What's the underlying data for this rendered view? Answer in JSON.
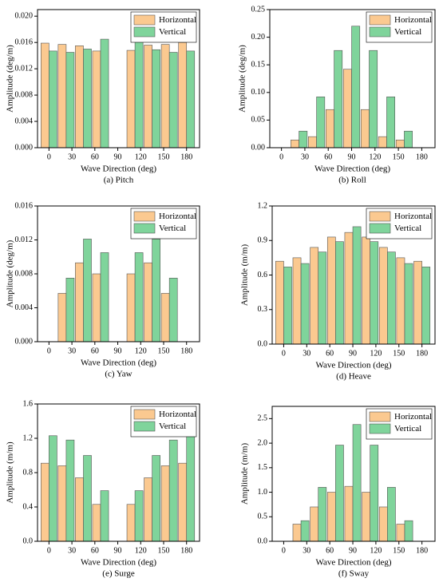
{
  "chart_data": [
    {
      "type": "bar",
      "caption": "(a) Pitch",
      "xlabel": "Wave Direction (deg)",
      "ylabel": "Amplitude (deg/m)",
      "x": [
        0,
        22.5,
        45,
        67.5,
        90,
        112.5,
        135,
        157.5,
        180
      ],
      "series": [
        {
          "name": "Horizontal",
          "color": "#fbc990",
          "values": [
            0.0159,
            0.0157,
            0.0155,
            0.0147,
            0,
            0.0148,
            0.0156,
            0.0157,
            0.016
          ]
        },
        {
          "name": "Vertical",
          "color": "#7fd49b",
          "values": [
            0.0147,
            0.0145,
            0.015,
            0.0165,
            0,
            0.0165,
            0.0149,
            0.0145,
            0.0147
          ]
        }
      ],
      "xlim": [
        -15,
        197
      ],
      "xticks": [
        0,
        30,
        60,
        90,
        120,
        150,
        180
      ],
      "ylim": [
        0,
        0.021
      ],
      "yticks": [
        {
          "value": 0,
          "label": "0.000"
        },
        {
          "value": 0.004,
          "label": "0.004"
        },
        {
          "value": 0.008,
          "label": "0.008"
        },
        {
          "value": 0.012,
          "label": "0.012"
        },
        {
          "value": 0.016,
          "label": "0.016"
        },
        {
          "value": 0.02,
          "label": "0.020"
        }
      ],
      "legend": "upper right"
    },
    {
      "type": "bar",
      "caption": "(b) Roll",
      "xlabel": "Wave Direction (deg)",
      "ylabel": "Amplitude (deg/m)",
      "x": [
        0,
        22.5,
        45,
        67.5,
        90,
        112.5,
        135,
        157.5,
        180
      ],
      "series": [
        {
          "name": "Horizontal",
          "color": "#fbc990",
          "values": [
            0,
            0.014,
            0.02,
            0.069,
            0.142,
            0.069,
            0.02,
            0.014,
            0
          ]
        },
        {
          "name": "Vertical",
          "color": "#7fd49b",
          "values": [
            0,
            0.03,
            0.092,
            0.176,
            0.22,
            0.176,
            0.092,
            0.03,
            0
          ]
        }
      ],
      "xlim": [
        -15,
        197
      ],
      "xticks": [
        0,
        30,
        60,
        90,
        120,
        150,
        180
      ],
      "ylim": [
        0,
        0.25
      ],
      "yticks": [
        {
          "value": 0,
          "label": "0.00"
        },
        {
          "value": 0.05,
          "label": "0.05"
        },
        {
          "value": 0.1,
          "label": "0.10"
        },
        {
          "value": 0.15,
          "label": "0.15"
        },
        {
          "value": 0.2,
          "label": "0.20"
        },
        {
          "value": 0.25,
          "label": "0.25"
        }
      ],
      "legend": "upper right"
    },
    {
      "type": "bar",
      "caption": "(c) Yaw",
      "xlabel": "Wave Direction (deg)",
      "ylabel": "Amplitude (deg/m)",
      "x": [
        0,
        22.5,
        45,
        67.5,
        90,
        112.5,
        135,
        157.5,
        180
      ],
      "series": [
        {
          "name": "Horizontal",
          "color": "#fbc990",
          "values": [
            0,
            0.0057,
            0.0093,
            0.008,
            0,
            0.008,
            0.0093,
            0.0057,
            0
          ]
        },
        {
          "name": "Vertical",
          "color": "#7fd49b",
          "values": [
            0,
            0.0075,
            0.0121,
            0.0105,
            0,
            0.0105,
            0.0121,
            0.0075,
            0
          ]
        }
      ],
      "xlim": [
        -15,
        197
      ],
      "xticks": [
        0,
        30,
        60,
        90,
        120,
        150,
        180
      ],
      "ylim": [
        0,
        0.016
      ],
      "yticks": [
        {
          "value": 0,
          "label": "0.000"
        },
        {
          "value": 0.004,
          "label": "0.004"
        },
        {
          "value": 0.008,
          "label": "0.008"
        },
        {
          "value": 0.012,
          "label": "0.012"
        },
        {
          "value": 0.016,
          "label": "0.016"
        }
      ],
      "legend": "upper right"
    },
    {
      "type": "bar",
      "caption": "(d) Heave",
      "xlabel": "Wave Direction (deg)",
      "ylabel": "Amplitude (m/m)",
      "x": [
        0,
        22.5,
        45,
        67.5,
        90,
        112.5,
        135,
        157.5,
        180
      ],
      "series": [
        {
          "name": "Horizontal",
          "color": "#fbc990",
          "values": [
            0.72,
            0.75,
            0.84,
            0.93,
            0.97,
            0.93,
            0.84,
            0.75,
            0.72
          ]
        },
        {
          "name": "Vertical",
          "color": "#7fd49b",
          "values": [
            0.67,
            0.7,
            0.8,
            0.89,
            1.02,
            0.89,
            0.8,
            0.7,
            0.67
          ]
        }
      ],
      "xlim": [
        -15,
        197
      ],
      "xticks": [
        0,
        30,
        60,
        90,
        120,
        150,
        180
      ],
      "ylim": [
        0,
        1.2
      ],
      "yticks": [
        {
          "value": 0,
          "label": "0.0"
        },
        0.3,
        0.6,
        0.9,
        1.2
      ],
      "legend": "upper right"
    },
    {
      "type": "bar",
      "caption": "(e) Surge",
      "xlabel": "Wave Direction (deg)",
      "ylabel": "Amplitude (m/m)",
      "x": [
        0,
        22.5,
        45,
        67.5,
        90,
        112.5,
        135,
        157.5,
        180
      ],
      "series": [
        {
          "name": "Horizontal",
          "color": "#fbc990",
          "values": [
            0.91,
            0.88,
            0.74,
            0.43,
            0,
            0.43,
            0.74,
            0.88,
            0.91
          ]
        },
        {
          "name": "Vertical",
          "color": "#7fd49b",
          "values": [
            1.23,
            1.18,
            1.0,
            0.59,
            0,
            0.59,
            1.0,
            1.18,
            1.23
          ]
        }
      ],
      "xlim": [
        -15,
        197
      ],
      "xticks": [
        0,
        30,
        60,
        90,
        120,
        150,
        180
      ],
      "ylim": [
        0,
        1.6
      ],
      "yticks": [
        {
          "value": 0,
          "label": "0.0"
        },
        0.4,
        0.8,
        1.2,
        1.6
      ],
      "legend": "upper right"
    },
    {
      "type": "bar",
      "caption": "(f) Sway",
      "xlabel": "Wave Direction (deg)",
      "ylabel": "Amplitude (m/m)",
      "x": [
        0,
        22.5,
        45,
        67.5,
        90,
        112.5,
        135,
        157.5,
        180
      ],
      "series": [
        {
          "name": "Horizontal",
          "color": "#fbc990",
          "values": [
            0,
            0.35,
            0.7,
            1.0,
            1.12,
            1.0,
            0.7,
            0.35,
            0
          ]
        },
        {
          "name": "Vertical",
          "color": "#7fd49b",
          "values": [
            0,
            0.42,
            1.1,
            1.96,
            2.38,
            1.96,
            1.1,
            0.42,
            0
          ]
        }
      ],
      "xlim": [
        -15,
        197
      ],
      "xticks": [
        0,
        30,
        60,
        90,
        120,
        150,
        180
      ],
      "ylim": [
        0,
        2.75
      ],
      "yticks": [
        {
          "value": 0,
          "label": "0.0"
        },
        0.5,
        {
          "value": 1,
          "label": "1.0"
        },
        1.5,
        {
          "value": 2,
          "label": "2.0"
        },
        2.5
      ],
      "legend": "upper right"
    }
  ]
}
